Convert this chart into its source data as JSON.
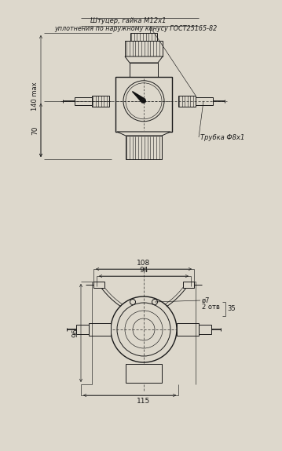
{
  "bg_color": "#ddd8cc",
  "line_color": "#1a1a1a",
  "lw_main": 0.7,
  "lw_thin": 0.45,
  "lw_thick": 1.0,
  "annotation1_line1": "Штуцер, гайка М12х1",
  "annotation1_line2": "уплотнения по наружному конусу ГОСТ25165-82",
  "annotation2": "Трубка Ф8х1",
  "dim_140": "140 max",
  "dim_70": "70",
  "dim_108": "108",
  "dim_94": "94",
  "dim_96": "96",
  "dim_115": "115",
  "dim_d7": "ø7",
  "dim_2otv": "2 отв",
  "dim_35": "35"
}
